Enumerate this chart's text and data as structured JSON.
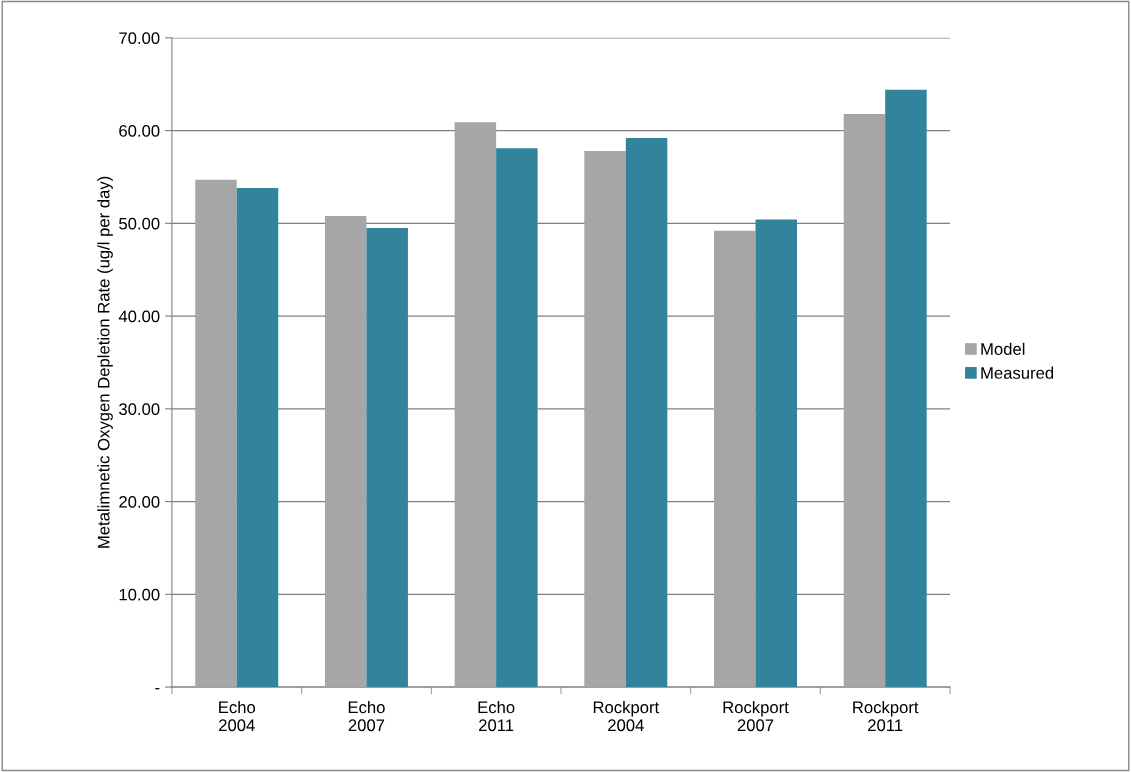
{
  "chart_data": {
    "type": "bar",
    "ylabel": "Metalimnetic Oxygen Depletion Rate (ug/l per day)",
    "categories": [
      "Echo\n2004",
      "Echo\n2007",
      "Echo\n2011",
      "Rockport\n2004",
      "Rockport\n2007",
      "Rockport\n2011"
    ],
    "series": [
      {
        "name": "Model",
        "color": "#a6a6a6",
        "values": [
          54.7,
          50.8,
          60.9,
          57.8,
          49.2,
          61.8
        ]
      },
      {
        "name": "Measured",
        "color": "#31849b",
        "values": [
          53.8,
          49.5,
          58.1,
          59.2,
          50.4,
          64.4
        ]
      }
    ],
    "ylim": [
      0,
      70
    ],
    "yticks": [
      {
        "value": 0,
        "label": "-"
      },
      {
        "value": 10,
        "label": "10.00"
      },
      {
        "value": 20,
        "label": "20.00"
      },
      {
        "value": 30,
        "label": "30.00"
      },
      {
        "value": 40,
        "label": "40.00"
      },
      {
        "value": 50,
        "label": "50.00"
      },
      {
        "value": 60,
        "label": "60.00"
      },
      {
        "value": 70,
        "label": "70.00"
      }
    ],
    "grid": "y",
    "legend": "right"
  }
}
